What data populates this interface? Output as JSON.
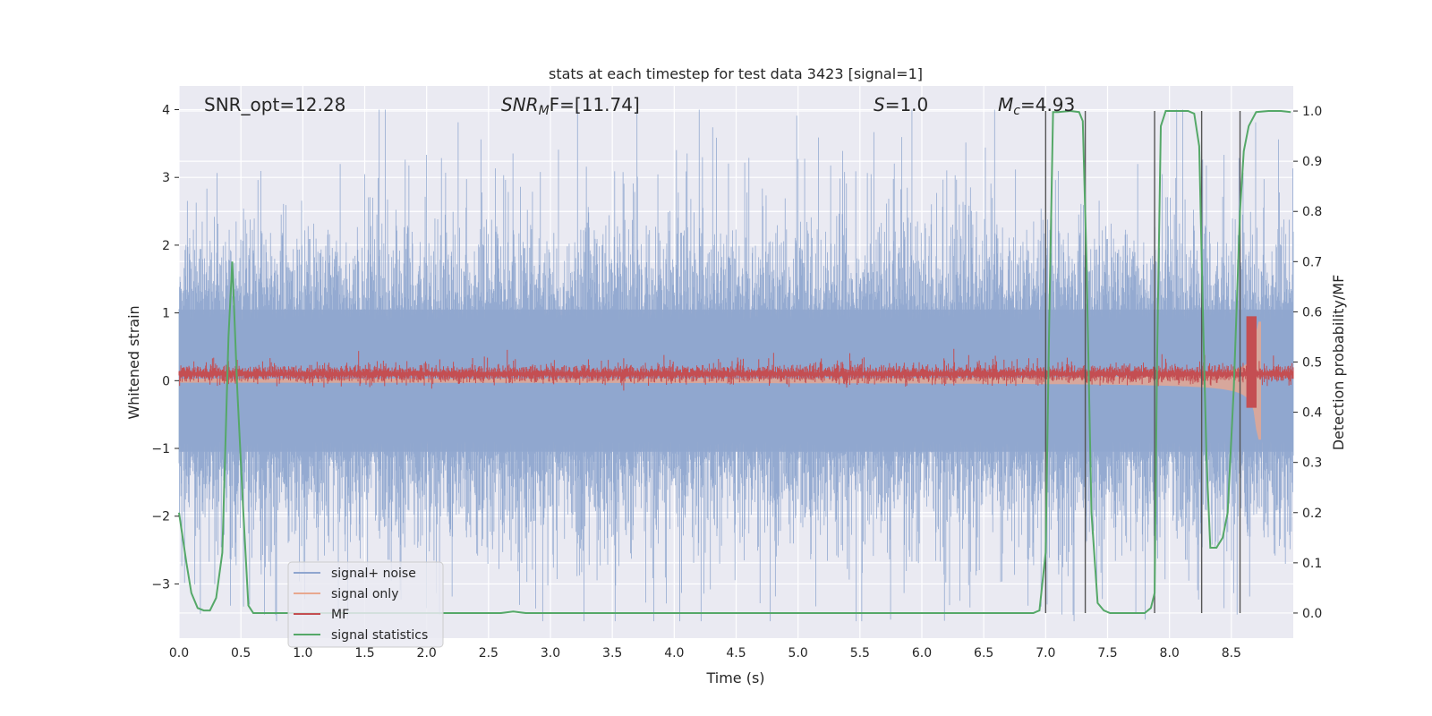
{
  "chart_data": {
    "type": "line",
    "title": "stats at each timestep for test data 3423 [signal=1]",
    "xlabel": "Time (s)",
    "ylabel": "Whitened strain",
    "y2label": "Detection probability/MF",
    "xlim": [
      0,
      9.0
    ],
    "ylim": [
      -3.8,
      4.35
    ],
    "y2lim": [
      -0.05,
      1.05
    ],
    "xticks": [
      0.0,
      0.5,
      1.0,
      1.5,
      2.0,
      2.5,
      3.0,
      3.5,
      4.0,
      4.5,
      5.0,
      5.5,
      6.0,
      6.5,
      7.0,
      7.5,
      8.0,
      8.5
    ],
    "xtick_labels": [
      "0.0",
      "0.5",
      "1.0",
      "1.5",
      "2.0",
      "2.5",
      "3.0",
      "3.5",
      "4.0",
      "4.5",
      "5.0",
      "5.5",
      "6.0",
      "6.5",
      "7.0",
      "7.5",
      "8.0",
      "8.5"
    ],
    "yticks": [
      -3,
      -2,
      -1,
      0,
      1,
      2,
      3,
      4
    ],
    "ytick_labels": [
      "−3",
      "−2",
      "−1",
      "0",
      "1",
      "2",
      "3",
      "4"
    ],
    "y2ticks": [
      0.0,
      0.1,
      0.2,
      0.3,
      0.4,
      0.5,
      0.6,
      0.7,
      0.8,
      0.9,
      1.0
    ],
    "y2tick_labels": [
      "0.0",
      "0.1",
      "0.2",
      "0.3",
      "0.4",
      "0.5",
      "0.6",
      "0.7",
      "0.8",
      "0.9",
      "1.0"
    ],
    "annotations": {
      "snr_opt": "SNR_opt=12.28",
      "snr_mf_sym": "SNR",
      "snr_mf_sub": "M",
      "snr_mf_rest": "F=[11.74]",
      "s_sym": "S",
      "s_rest": "=1.0",
      "mc_sym": "M",
      "mc_sub": "c",
      "mc_rest": "=4.93"
    },
    "legend": {
      "position": "lower-left",
      "entries": [
        {
          "label": "signal+ noise",
          "color": "#8fa6cf"
        },
        {
          "label": "signal only",
          "color": "#e8a88f"
        },
        {
          "label": "MF",
          "color": "#c44e52"
        },
        {
          "label": "signal statistics",
          "color": "#55a868"
        }
      ]
    },
    "vlines": [
      7.0,
      7.32,
      7.88,
      8.26,
      8.57
    ],
    "series": [
      {
        "name": "signal statistics",
        "axis": "right",
        "color": "#55a868",
        "x": [
          0.0,
          0.06,
          0.1,
          0.15,
          0.2,
          0.25,
          0.3,
          0.35,
          0.4,
          0.43,
          0.47,
          0.52,
          0.56,
          0.6,
          0.65,
          0.7,
          1.0,
          1.5,
          2.0,
          2.5,
          2.6,
          2.7,
          2.8,
          3.0,
          3.5,
          4.0,
          4.5,
          5.0,
          5.5,
          6.0,
          6.5,
          6.9,
          6.95,
          7.0,
          7.03,
          7.06,
          7.1,
          7.2,
          7.27,
          7.3,
          7.33,
          7.37,
          7.42,
          7.47,
          7.52,
          7.6,
          7.7,
          7.8,
          7.85,
          7.88,
          7.9,
          7.93,
          7.97,
          8.05,
          8.15,
          8.2,
          8.24,
          8.27,
          8.3,
          8.33,
          8.38,
          8.43,
          8.47,
          8.52,
          8.57,
          8.6,
          8.64,
          8.7,
          8.8,
          8.9,
          8.98
        ],
        "y": [
          0.2,
          0.1,
          0.04,
          0.01,
          0.005,
          0.005,
          0.03,
          0.12,
          0.55,
          0.7,
          0.45,
          0.2,
          0.015,
          0.0,
          0.0,
          0.0,
          0.0,
          0.0,
          0.0,
          0.0,
          0.0,
          0.003,
          0.0,
          0.0,
          0.0,
          0.0,
          0.0,
          0.0,
          0.0,
          0.0,
          0.0,
          0.0,
          0.005,
          0.12,
          0.6,
          0.998,
          0.998,
          1.0,
          0.998,
          0.98,
          0.7,
          0.2,
          0.02,
          0.005,
          0.0,
          0.0,
          0.0,
          0.0,
          0.01,
          0.04,
          0.5,
          0.97,
          1.0,
          1.0,
          1.0,
          0.995,
          0.93,
          0.6,
          0.3,
          0.13,
          0.13,
          0.15,
          0.2,
          0.45,
          0.8,
          0.92,
          0.97,
          0.998,
          1.0,
          1.0,
          0.998
        ]
      }
    ]
  }
}
